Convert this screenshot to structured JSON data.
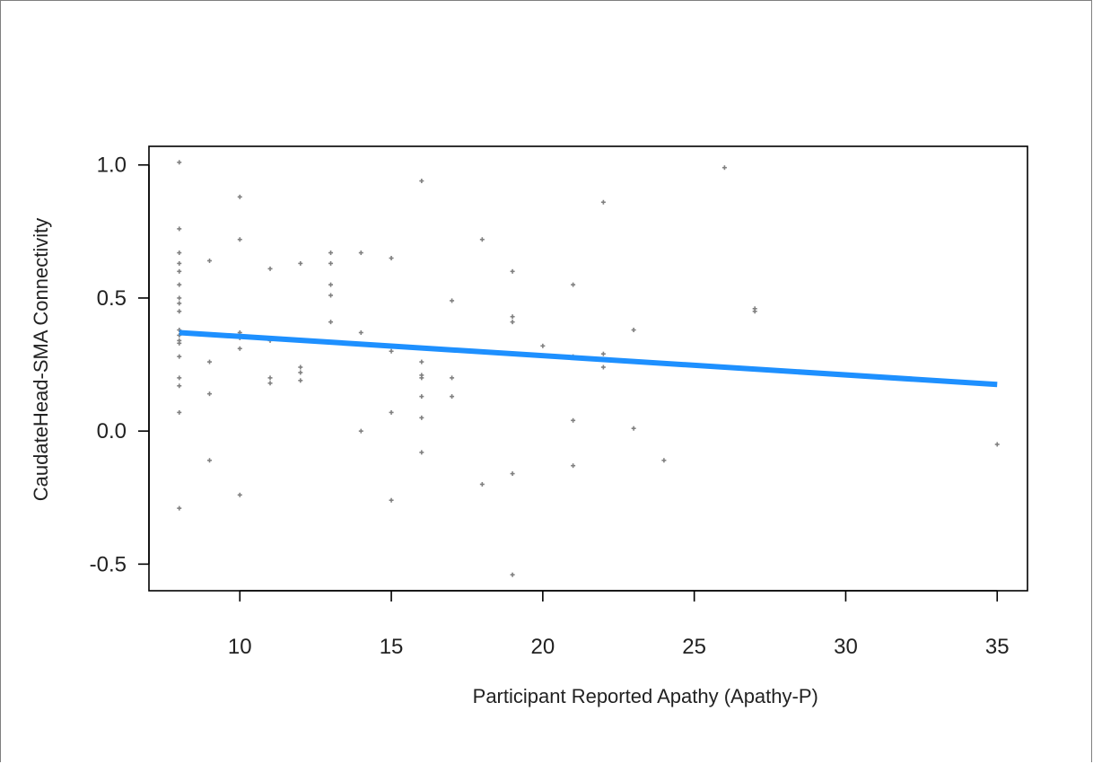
{
  "chart_data": {
    "type": "scatter",
    "title": "",
    "xlabel": "Participant Reported Apathy (Apathy-P)",
    "ylabel": "CaudateHead-SMA Connectivity",
    "xlim": [
      7.0,
      36.0
    ],
    "ylim": [
      -0.6,
      1.07
    ],
    "x_ticks": [
      10,
      15,
      20,
      25,
      30,
      35
    ],
    "y_ticks": [
      -0.5,
      0.0,
      0.5,
      1.0
    ],
    "x_tick_labels": [
      "10",
      "15",
      "20",
      "25",
      "30",
      "35"
    ],
    "y_tick_labels": [
      "-0.5",
      "0.0",
      "0.5",
      "1.0"
    ],
    "grid": false,
    "points": [
      [
        8,
        1.01
      ],
      [
        8,
        0.76
      ],
      [
        8,
        0.67
      ],
      [
        8,
        0.63
      ],
      [
        8,
        0.6
      ],
      [
        8,
        0.55
      ],
      [
        8,
        0.5
      ],
      [
        8,
        0.48
      ],
      [
        8,
        0.45
      ],
      [
        8,
        0.38
      ],
      [
        8,
        0.36
      ],
      [
        8,
        0.34
      ],
      [
        8,
        0.33
      ],
      [
        8,
        0.28
      ],
      [
        8,
        0.2
      ],
      [
        8,
        0.17
      ],
      [
        8,
        0.07
      ],
      [
        8,
        -0.29
      ],
      [
        9,
        0.64
      ],
      [
        9,
        0.26
      ],
      [
        9,
        0.14
      ],
      [
        9,
        -0.11
      ],
      [
        10,
        0.88
      ],
      [
        10,
        0.72
      ],
      [
        10,
        0.37
      ],
      [
        10,
        0.35
      ],
      [
        10,
        0.31
      ],
      [
        10,
        -0.24
      ],
      [
        11,
        0.61
      ],
      [
        11,
        0.34
      ],
      [
        11,
        0.2
      ],
      [
        11,
        0.18
      ],
      [
        12,
        0.63
      ],
      [
        12,
        0.24
      ],
      [
        12,
        0.22
      ],
      [
        12,
        0.19
      ],
      [
        13,
        0.67
      ],
      [
        13,
        0.63
      ],
      [
        13,
        0.55
      ],
      [
        13,
        0.51
      ],
      [
        13,
        0.41
      ],
      [
        14,
        0.67
      ],
      [
        14,
        0.37
      ],
      [
        14,
        0.0
      ],
      [
        15,
        0.65
      ],
      [
        15,
        0.32
      ],
      [
        15,
        0.3
      ],
      [
        15,
        0.07
      ],
      [
        15,
        -0.26
      ],
      [
        16,
        0.94
      ],
      [
        16,
        0.26
      ],
      [
        16,
        0.21
      ],
      [
        16,
        0.2
      ],
      [
        16,
        0.13
      ],
      [
        16,
        0.05
      ],
      [
        16,
        -0.08
      ],
      [
        17,
        0.49
      ],
      [
        17,
        0.2
      ],
      [
        17,
        0.13
      ],
      [
        18,
        0.72
      ],
      [
        18,
        -0.2
      ],
      [
        19,
        0.6
      ],
      [
        19,
        0.43
      ],
      [
        19,
        0.41
      ],
      [
        19,
        -0.16
      ],
      [
        19,
        -0.54
      ],
      [
        20,
        0.32
      ],
      [
        21,
        0.55
      ],
      [
        21,
        0.28
      ],
      [
        21,
        0.04
      ],
      [
        21,
        -0.13
      ],
      [
        22,
        0.86
      ],
      [
        22,
        0.29
      ],
      [
        22,
        0.24
      ],
      [
        23,
        0.38
      ],
      [
        23,
        0.01
      ],
      [
        24,
        -0.11
      ],
      [
        26,
        0.99
      ],
      [
        27,
        0.46
      ],
      [
        27,
        0.45
      ],
      [
        35,
        -0.05
      ]
    ],
    "point_color": "#808080",
    "fit_line": {
      "x": [
        8,
        35
      ],
      "y": [
        0.37,
        0.175
      ],
      "color": "#1e90ff"
    }
  }
}
